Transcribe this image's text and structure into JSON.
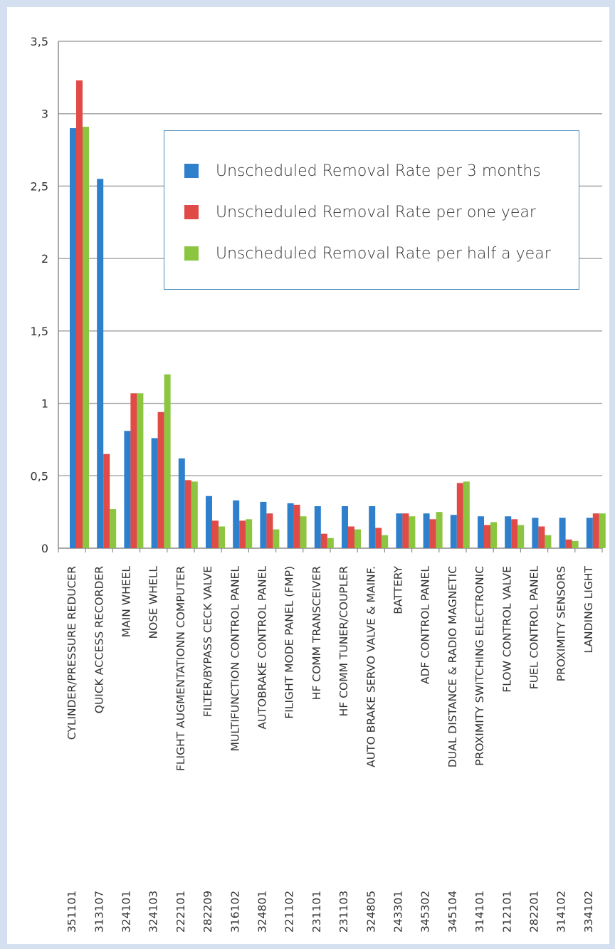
{
  "chart_data": {
    "type": "bar",
    "ylim": [
      0,
      3.5
    ],
    "yticks": [
      "0",
      "0,5",
      "1",
      "1,5",
      "2",
      "2,5",
      "3",
      "3,5"
    ],
    "grid": true,
    "legend_position": "top-right",
    "categories": [
      {
        "code": "351101",
        "name": "CYLINDER/PRESSURE REDUCER"
      },
      {
        "code": "313107",
        "name": "QUICK ACCESS RECORDER"
      },
      {
        "code": "324101",
        "name": "MAIN WHEEL"
      },
      {
        "code": "324103",
        "name": "NOSE WHELL"
      },
      {
        "code": "222101",
        "name": "FLIGHT AUGMENTATIONN COMPUTER"
      },
      {
        "code": "282209",
        "name": "FILTER/BYPASS CECK VALVE"
      },
      {
        "code": "316102",
        "name": "MULTIFUNCTION CONTROL PANEL"
      },
      {
        "code": "324801",
        "name": "AUTOBRAKE CONTROL PANEL"
      },
      {
        "code": "221102",
        "name": "FILIGHT MODE PANEL (FMP)"
      },
      {
        "code": "231101",
        "name": "HF COMM TRANSCEIVER"
      },
      {
        "code": "231103",
        "name": "HF COMM TUNER/COUPLER"
      },
      {
        "code": "324805",
        "name": "AUTO BRAKE SERVO VALVE & MAINF."
      },
      {
        "code": "243301",
        "name": "BATTERY"
      },
      {
        "code": "345302",
        "name": "ADF CONTROL PANEL"
      },
      {
        "code": "345104",
        "name": "DUAL DISTANCE & RADIO MAGNETIC"
      },
      {
        "code": "314101",
        "name": "PROXIMITY SWITCHING ELECTRONIC"
      },
      {
        "code": "212101",
        "name": "FLOW CONTROL VALVE"
      },
      {
        "code": "282201",
        "name": "FUEL CONTROL PANEL"
      },
      {
        "code": "314102",
        "name": "PROXIMITY SENSORS"
      },
      {
        "code": "334102",
        "name": "LANDING LIGHT"
      }
    ],
    "series": [
      {
        "name": "Unscheduled Removal Rate per 3 months",
        "color": "#2e7fcc",
        "values": [
          2.9,
          2.55,
          0.81,
          0.76,
          0.62,
          0.36,
          0.33,
          0.32,
          0.31,
          0.29,
          0.29,
          0.29,
          0.24,
          0.24,
          0.23,
          0.22,
          0.22,
          0.21,
          0.21,
          0.21
        ]
      },
      {
        "name": "Unscheduled Removal Rate per one year",
        "color": "#e04a47",
        "values": [
          3.23,
          0.65,
          1.07,
          0.94,
          0.47,
          0.19,
          0.19,
          0.24,
          0.3,
          0.1,
          0.15,
          0.14,
          0.24,
          0.2,
          0.45,
          0.16,
          0.2,
          0.15,
          0.06,
          0.24
        ]
      },
      {
        "name": "Unscheduled Removal Rate per half a year",
        "color": "#8cc641",
        "values": [
          2.91,
          0.27,
          1.07,
          1.2,
          0.46,
          0.15,
          0.2,
          0.13,
          0.22,
          0.07,
          0.13,
          0.09,
          0.22,
          0.25,
          0.46,
          0.18,
          0.16,
          0.09,
          0.05,
          0.24
        ]
      }
    ]
  }
}
